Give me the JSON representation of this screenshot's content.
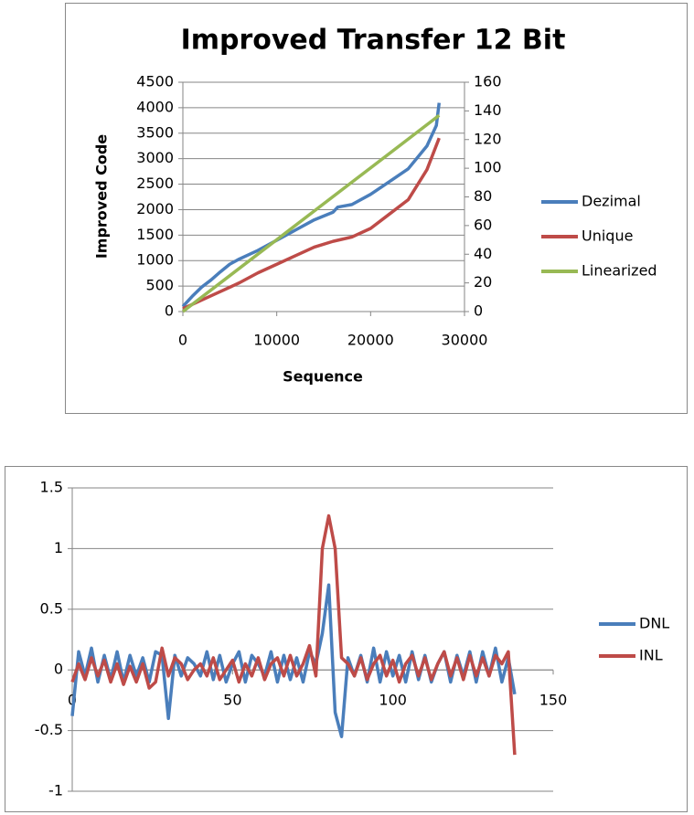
{
  "chart_data": [
    {
      "type": "line",
      "title": "Improved Transfer 12 Bit",
      "x_label": "Sequence",
      "y_label": "Improved Code",
      "xlim": [
        0,
        30000
      ],
      "xticks": [
        0,
        10000,
        20000,
        30000
      ],
      "ylim": [
        0,
        4500
      ],
      "yticks": [
        0,
        500,
        1000,
        1500,
        2000,
        2500,
        3000,
        3500,
        4000,
        4500
      ],
      "y2lim": [
        0,
        160
      ],
      "y2ticks": [
        0,
        20,
        40,
        60,
        80,
        100,
        120,
        140,
        160
      ],
      "grid": true,
      "legend": "right",
      "series": [
        {
          "name": "Dezimal",
          "color": "#4a7ebb",
          "x": [
            0,
            1000,
            2000,
            3000,
            4000,
            5000,
            6000,
            8000,
            10000,
            12000,
            14000,
            16000,
            16500,
            18000,
            20000,
            22000,
            24000,
            26000,
            27000,
            27300
          ],
          "values": [
            100,
            300,
            480,
            620,
            780,
            930,
            1030,
            1200,
            1400,
            1600,
            1800,
            1950,
            2050,
            2100,
            2300,
            2550,
            2800,
            3250,
            3650,
            4095
          ]
        },
        {
          "name": "Unique",
          "color": "#be4b48",
          "axis": "y2",
          "x": [
            0,
            2000,
            4000,
            6000,
            8000,
            10000,
            12000,
            14000,
            16000,
            18000,
            20000,
            22000,
            24000,
            26000,
            27300
          ],
          "values": [
            2,
            8,
            14,
            20,
            27,
            33,
            39,
            45,
            49,
            52,
            58,
            68,
            78,
            99,
            121
          ]
        },
        {
          "name": "Linearized",
          "color": "#98b954",
          "x": [
            0,
            5000,
            10000,
            15000,
            20000,
            25000,
            27300
          ],
          "values": [
            0,
            705,
            1410,
            2115,
            2820,
            3525,
            3850
          ]
        }
      ]
    },
    {
      "type": "line",
      "xlim": [
        0,
        150
      ],
      "xticks": [
        0,
        50,
        100,
        150
      ],
      "ylim": [
        -1,
        1.5
      ],
      "yticks": [
        -1,
        -0.5,
        0,
        0.5,
        1,
        1.5
      ],
      "grid": true,
      "legend": "right",
      "series": [
        {
          "name": "DNL",
          "color": "#4a7ebb",
          "x": [
            0,
            2,
            4,
            6,
            8,
            10,
            12,
            14,
            16,
            18,
            20,
            22,
            24,
            26,
            28,
            30,
            32,
            34,
            36,
            38,
            40,
            42,
            44,
            46,
            48,
            50,
            52,
            54,
            56,
            58,
            60,
            62,
            64,
            66,
            68,
            70,
            72,
            74,
            76,
            78,
            80,
            82,
            84,
            86,
            88,
            90,
            92,
            94,
            96,
            98,
            100,
            102,
            104,
            106,
            108,
            110,
            112,
            114,
            116,
            118,
            120,
            122,
            124,
            126,
            128,
            130,
            132,
            134,
            136,
            138
          ],
          "values": [
            -0.38,
            0.15,
            -0.05,
            0.18,
            -0.1,
            0.12,
            -0.08,
            0.15,
            -0.1,
            0.12,
            -0.05,
            0.1,
            -0.1,
            0.15,
            0.12,
            -0.4,
            0.12,
            -0.05,
            0.1,
            0.05,
            -0.05,
            0.15,
            -0.08,
            0.12,
            -0.1,
            0.05,
            0.15,
            -0.1,
            0.12,
            0.05,
            -0.05,
            0.15,
            -0.1,
            0.12,
            -0.08,
            0.1,
            -0.1,
            0.15,
            0.05,
            0.3,
            0.7,
            -0.35,
            -0.55,
            0.1,
            -0.05,
            0.12,
            -0.1,
            0.18,
            -0.1,
            0.15,
            -0.05,
            0.12,
            -0.1,
            0.15,
            -0.08,
            0.12,
            -0.1,
            0.05,
            0.15,
            -0.1,
            0.12,
            -0.05,
            0.15,
            -0.1,
            0.15,
            -0.05,
            0.18,
            -0.1,
            0.1,
            -0.2
          ]
        },
        {
          "name": "INL",
          "color": "#be4b48",
          "x": [
            0,
            2,
            4,
            6,
            8,
            10,
            12,
            14,
            16,
            18,
            20,
            22,
            24,
            26,
            28,
            30,
            32,
            34,
            36,
            38,
            40,
            42,
            44,
            46,
            48,
            50,
            52,
            54,
            56,
            58,
            60,
            62,
            64,
            66,
            68,
            70,
            72,
            74,
            76,
            78,
            80,
            82,
            84,
            86,
            88,
            90,
            92,
            94,
            96,
            98,
            100,
            102,
            104,
            106,
            108,
            110,
            112,
            114,
            116,
            118,
            120,
            122,
            124,
            126,
            128,
            130,
            132,
            134,
            136,
            138
          ],
          "values": [
            -0.1,
            0.05,
            -0.08,
            0.1,
            -0.05,
            0.08,
            -0.1,
            0.05,
            -0.12,
            0.03,
            -0.1,
            0.05,
            -0.15,
            -0.1,
            0.18,
            -0.05,
            0.1,
            0.05,
            -0.08,
            0,
            0.05,
            -0.05,
            0.1,
            -0.08,
            0,
            0.08,
            -0.1,
            0.05,
            -0.05,
            0.1,
            -0.08,
            0.05,
            0.1,
            -0.05,
            0.12,
            -0.05,
            0.05,
            0.2,
            -0.05,
            1.0,
            1.27,
            1.0,
            0.1,
            0.05,
            -0.05,
            0.1,
            -0.08,
            0.05,
            0.12,
            -0.05,
            0.08,
            -0.1,
            0.05,
            0.12,
            -0.05,
            0.1,
            -0.08,
            0.05,
            0.15,
            -0.05,
            0.1,
            -0.08,
            0.12,
            -0.05,
            0.1,
            -0.05,
            0.12,
            0.05,
            0.15,
            -0.7
          ]
        }
      ]
    }
  ]
}
